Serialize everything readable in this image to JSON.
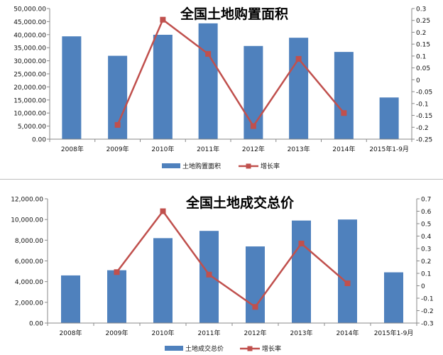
{
  "chart_data": [
    {
      "type": "bar",
      "title": "全国土地购置面积",
      "categories": [
        "2008年",
        "2009年",
        "2010年",
        "2011年",
        "2012年",
        "2013年",
        "2014年",
        "2015年1-9月"
      ],
      "series": [
        {
          "name": "土地购置面积",
          "type": "bar",
          "axis": "left",
          "color": "#4F81BD",
          "values": [
            39353,
            31906,
            39953,
            44327,
            35667,
            38814,
            33383,
            15952
          ]
        },
        {
          "name": "增长率",
          "type": "line",
          "axis": "right",
          "color": "#C0504D",
          "values": [
            null,
            -0.19,
            0.253,
            0.109,
            -0.195,
            0.088,
            -0.14,
            null
          ]
        }
      ],
      "ylim_left": [
        0,
        50000
      ],
      "yticks_left": [
        "0.00",
        "5,000.00",
        "10,000.00",
        "15,000.00",
        "20,000.00",
        "25,000.00",
        "30,000.00",
        "35,000.00",
        "40,000.00",
        "45,000.00",
        "50,000.00"
      ],
      "ylim_right": [
        -0.25,
        0.3
      ],
      "yticks_right": [
        "-0.25",
        "-0.2",
        "-0.15",
        "-0.1",
        "-0.05",
        "0",
        "0.05",
        "0.1",
        "0.15",
        "0.2",
        "0.25",
        "0.3"
      ],
      "grid": false,
      "legend": "bottom"
    },
    {
      "type": "bar",
      "title": "全国土地成交总价",
      "categories": [
        "2008年",
        "2009年",
        "2010年",
        "2011年",
        "2012年",
        "2013年",
        "2014年",
        "2015年1-9月"
      ],
      "series": [
        {
          "name": "土地成交总价",
          "type": "bar",
          "axis": "left",
          "color": "#4F81BD",
          "values": [
            4600,
            5100,
            8200,
            8900,
            7400,
            9900,
            10000,
            4900
          ]
        },
        {
          "name": "增长率",
          "type": "line",
          "axis": "right",
          "color": "#C0504D",
          "values": [
            null,
            0.11,
            0.6,
            0.09,
            -0.17,
            0.34,
            0.02,
            null
          ]
        }
      ],
      "ylim_left": [
        0,
        12000
      ],
      "yticks_left": [
        "0.00",
        "2,000.00",
        "4,000.00",
        "6,000.00",
        "8,000.00",
        "10,000.00",
        "12,000.00"
      ],
      "ylim_right": [
        -0.3,
        0.7
      ],
      "yticks_right": [
        "-0.3",
        "-0.2",
        "-0.1",
        "0",
        "0.1",
        "0.2",
        "0.3",
        "0.4",
        "0.5",
        "0.6",
        "0.7"
      ],
      "grid": false,
      "legend": "bottom"
    }
  ]
}
